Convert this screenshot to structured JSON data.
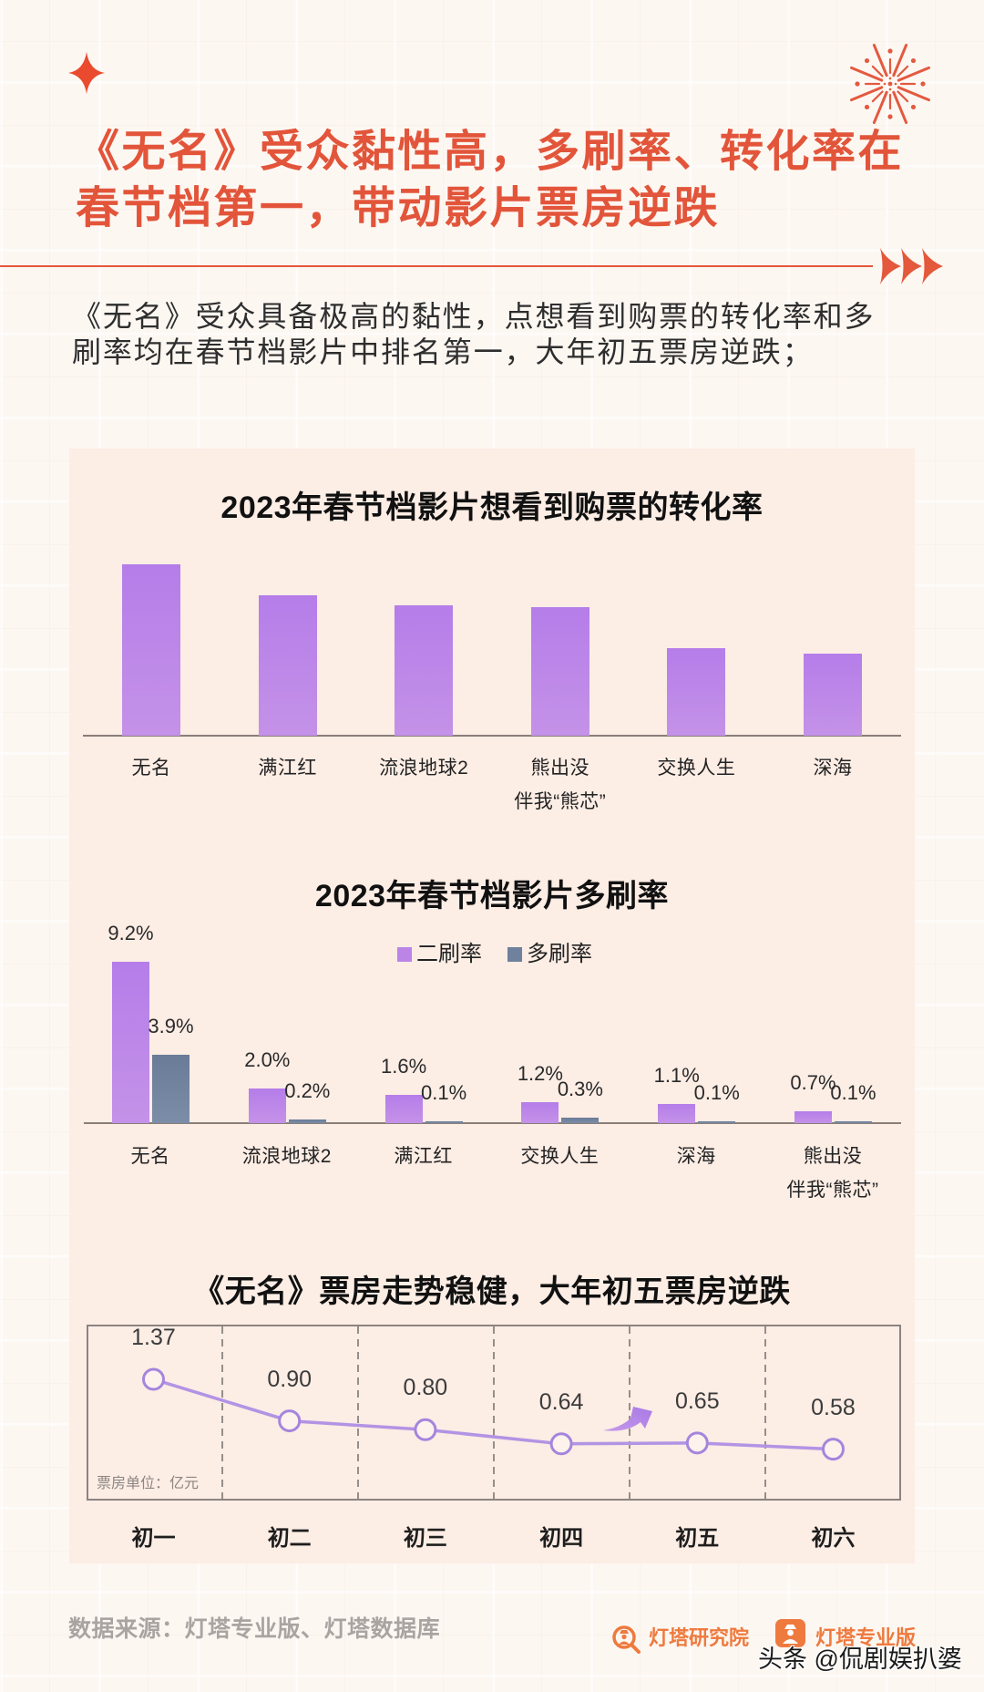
{
  "theme": {
    "accent": "#e2553a",
    "page_bg": "#fdf7f2",
    "panel_bg": "#fcede5",
    "bar_purple": "#bb85e8",
    "bar_slate": "#6f819c",
    "line_purple": "#a585dd",
    "brand_orange": "#ee7a3e"
  },
  "header": {
    "title_lines": [
      "《无名》受众黏性高，多刷率、转化率在",
      "春节档第一，带动影片票房逆跌"
    ],
    "intro_lines": [
      "《无名》受众具备极高的黏性，点想看到购票的转化率和多",
      "刷率均在春节档影片中排名第一，大年初五票房逆跌；"
    ],
    "decor_icons": [
      "sparkle-star-icon",
      "firework-icon",
      "triple-arrow-icon"
    ]
  },
  "chart_data": [
    {
      "type": "bar",
      "title": "2023年春节档影片想看到购票的转化率",
      "categories": [
        "无名",
        "满江红",
        "流浪地球2",
        "熊出没\n伴我“熊芯”",
        "交换人生",
        "深海"
      ],
      "values": [
        100,
        82,
        76,
        75,
        51,
        48
      ],
      "xlabel": "",
      "ylabel": "",
      "ylim": [
        0,
        100
      ],
      "grid": false,
      "legend": null,
      "color": "#bb85e8"
    },
    {
      "type": "bar",
      "title": "2023年春节档影片多刷率",
      "categories": [
        "无名",
        "流浪地球2",
        "满江红",
        "交换人生",
        "深海",
        "熊出没\n伴我“熊芯”"
      ],
      "series": [
        {
          "name": "二刷率",
          "values": [
            9.2,
            2.0,
            1.6,
            1.2,
            1.1,
            0.7
          ],
          "labels": [
            "9.2%",
            "2.0%",
            "1.6%",
            "1.2%",
            "1.1%",
            "0.7%"
          ],
          "color": "#bb85e8"
        },
        {
          "name": "多刷率",
          "values": [
            3.9,
            0.2,
            0.1,
            0.3,
            0.1,
            0.1
          ],
          "labels": [
            "3.9%",
            "0.2%",
            "0.1%",
            "0.3%",
            "0.1%",
            "0.1%"
          ],
          "color": "#6f819c"
        }
      ],
      "unit": "%",
      "xlabel": "",
      "ylabel": "",
      "ylim": [
        0,
        10
      ],
      "grid": false,
      "legend_position": "top"
    },
    {
      "type": "line",
      "title": "《无名》票房走势稳健，大年初五票房逆跌",
      "x": [
        "初一",
        "初二",
        "初三",
        "初四",
        "初五",
        "初六"
      ],
      "values": [
        1.37,
        0.9,
        0.8,
        0.64,
        0.65,
        0.58
      ],
      "labels": [
        "1.37",
        "0.90",
        "0.80",
        "0.64",
        "0.65",
        "0.58"
      ],
      "unit_note": "票房单位：亿元",
      "xlabel": "",
      "ylabel": "",
      "grid": "vertical-dashed",
      "annotations": [
        {
          "type": "arrow",
          "between": [
            "初四",
            "初五"
          ],
          "color": "#a879e6"
        }
      ]
    }
  ],
  "footer": {
    "source": "数据来源：灯塔专业版、灯塔数据库",
    "logos": [
      {
        "icon": "dengta-research-logo-icon",
        "label": "灯塔研究院"
      },
      {
        "icon": "dengta-pro-logo-icon",
        "label": "灯塔专业版"
      }
    ],
    "watermark": "头条 @侃剧娱扒婆"
  }
}
